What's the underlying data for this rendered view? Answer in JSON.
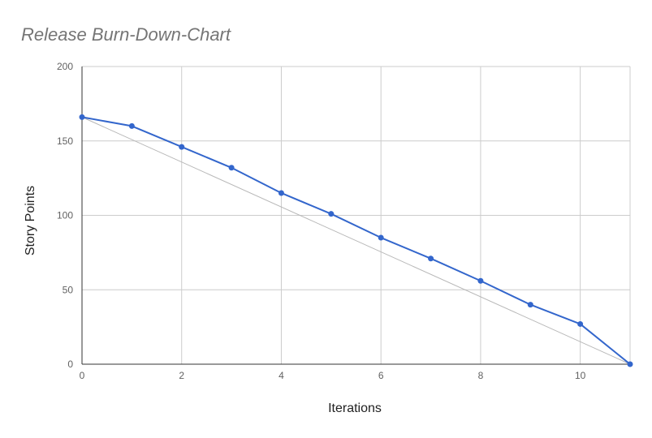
{
  "chart_data": {
    "type": "line",
    "title": "Release Burn-Down-Chart",
    "xlabel": "Iterations",
    "ylabel": "Story Points",
    "xlim": [
      0,
      11
    ],
    "ylim": [
      0,
      200
    ],
    "x_ticks": [
      0,
      2,
      4,
      6,
      8,
      10
    ],
    "y_ticks": [
      0,
      50,
      100,
      150,
      200
    ],
    "grid": true,
    "legend": "none",
    "series": [
      {
        "kind": "actual",
        "color": "#3366cc",
        "x": [
          0,
          1,
          2,
          3,
          4,
          5,
          6,
          7,
          8,
          9,
          10,
          11
        ],
        "values": [
          166,
          160,
          146,
          132,
          115,
          101,
          85,
          71,
          56,
          40,
          27,
          0
        ]
      },
      {
        "kind": "ideal",
        "color": "#b7b7b7",
        "x": [
          0,
          11
        ],
        "values": [
          166,
          0
        ]
      }
    ]
  }
}
